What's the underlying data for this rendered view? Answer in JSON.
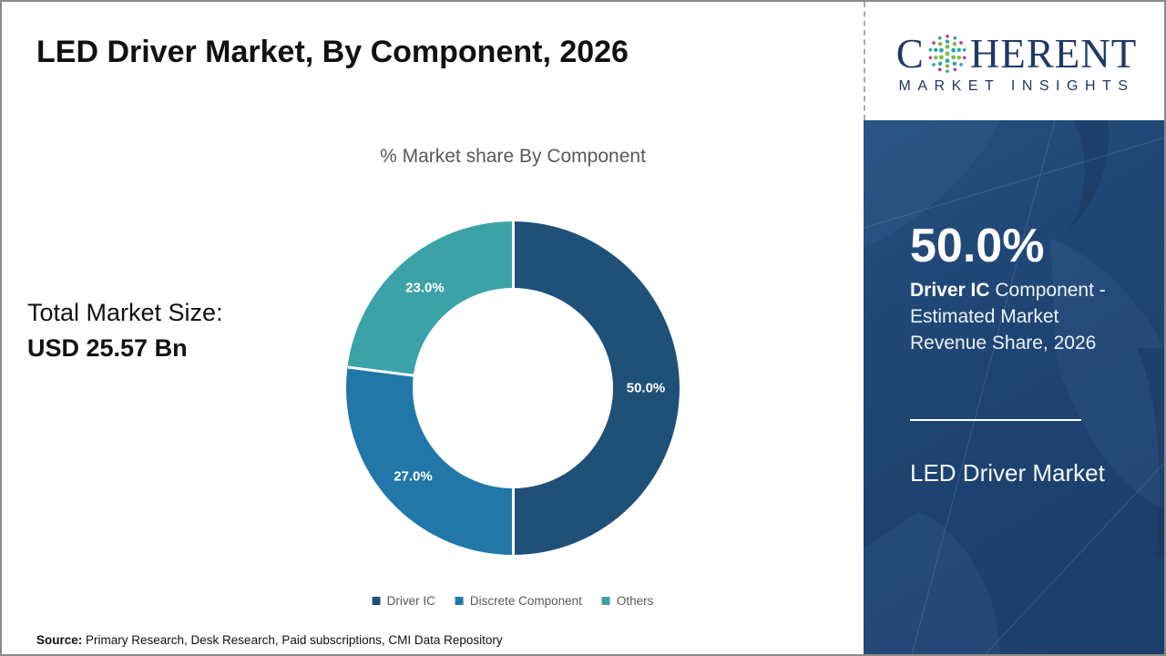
{
  "header": {
    "title": "LED Driver Market, By Component, 2026"
  },
  "logo": {
    "brand_first_letter": "C",
    "brand_rest": "HERENT",
    "subtitle": "MARKET INSIGHTS",
    "text_color": "#1F3864",
    "dot_colors": {
      "magenta": "#C13A86",
      "teal": "#2FA3A8",
      "green": "#7CBB45"
    }
  },
  "left_panel": {
    "total_label": "Total Market Size:",
    "total_value": "USD 25.57 Bn"
  },
  "chart_data": {
    "type": "pie",
    "donut": true,
    "title": "% Market share By Component",
    "start_angle_deg": 0,
    "direction": "clockwise",
    "legend_position": "bottom",
    "series": [
      {
        "name": "Driver IC",
        "value": 50.0,
        "label": "50.0%",
        "color": "#1F5078"
      },
      {
        "name": "Discrete Component",
        "value": 27.0,
        "label": "27.0%",
        "color": "#2178A8"
      },
      {
        "name": "Others",
        "value": 23.0,
        "label": "23.0%",
        "color": "#3BA3A8"
      }
    ]
  },
  "sidebar": {
    "background_color": "#1E4472",
    "stat_value": "50.0%",
    "stat_bold": "Driver IC",
    "stat_rest": " Component - Estimated Market Revenue Share, 2026",
    "panel_title": "LED Driver Market"
  },
  "source": {
    "label": "Source:",
    "text": " Primary Research, Desk Research, Paid subscriptions, CMI Data Repository"
  }
}
